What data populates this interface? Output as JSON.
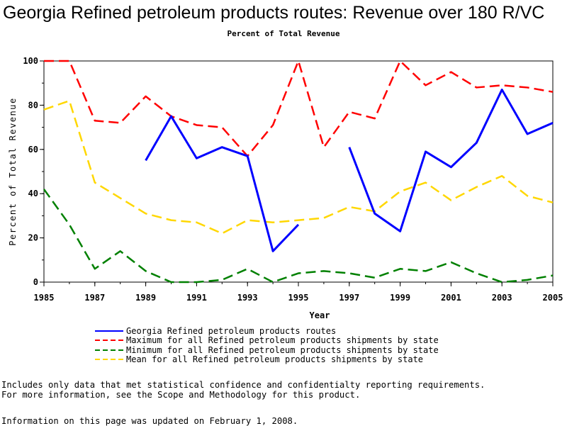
{
  "chart_data": {
    "type": "line",
    "title": "Georgia Refined petroleum products routes: Revenue over 180 R/VC",
    "subtitle": "Percent of Total Revenue",
    "xlabel": "Year",
    "ylabel": "Percent of Total Revenue",
    "xlim": [
      1985,
      2005
    ],
    "ylim": [
      0,
      100
    ],
    "x_ticks": [
      "1985",
      "1987",
      "1989",
      "1991",
      "1993",
      "1995",
      "1997",
      "1999",
      "2001",
      "2003",
      "2005"
    ],
    "y_ticks": [
      "0",
      "20",
      "40",
      "60",
      "80",
      "100"
    ],
    "x": [
      1985,
      1986,
      1987,
      1988,
      1989,
      1990,
      1991,
      1992,
      1993,
      1994,
      1995,
      1996,
      1997,
      1998,
      1999,
      2000,
      2001,
      2002,
      2003,
      2004,
      2005
    ],
    "series": [
      {
        "name": "Georgia Refined petroleum products routes",
        "color": "#0000ff",
        "dash": "solid",
        "values": [
          null,
          null,
          null,
          null,
          55,
          75,
          56,
          61,
          57,
          14,
          26,
          null,
          61,
          31,
          23,
          59,
          52,
          63,
          87,
          67,
          72
        ]
      },
      {
        "name": "Maximum for all Refined petroleum products shipments by state",
        "color": "#ff0000",
        "dash": "dashed",
        "values": [
          100,
          100,
          73,
          72,
          84,
          75,
          71,
          70,
          57,
          71,
          100,
          61,
          77,
          74,
          100,
          89,
          95,
          88,
          89,
          88,
          86
        ]
      },
      {
        "name": "Minimum for all Refined petroleum products shipments by state",
        "color": "#008000",
        "dash": "dashed",
        "values": [
          42,
          26,
          6,
          14,
          5,
          0,
          0,
          1,
          6,
          0,
          4,
          5,
          4,
          2,
          6,
          5,
          9,
          4,
          0,
          1,
          3
        ]
      },
      {
        "name": "Mean for all Refined petroleum products shipments by state",
        "color": "#ffd700",
        "dash": "dashed",
        "values": [
          78,
          82,
          45,
          38,
          31,
          28,
          27,
          22,
          28,
          27,
          28,
          29,
          34,
          32,
          41,
          45,
          37,
          43,
          48,
          39,
          36
        ]
      }
    ]
  },
  "notes": {
    "line1": "Includes only data that met statistical confidence and confidentialty reporting requirements.",
    "line2": "For more information, see the Scope and Methodology for this product.",
    "updated": "Information on this page was updated on February 1, 2008."
  }
}
